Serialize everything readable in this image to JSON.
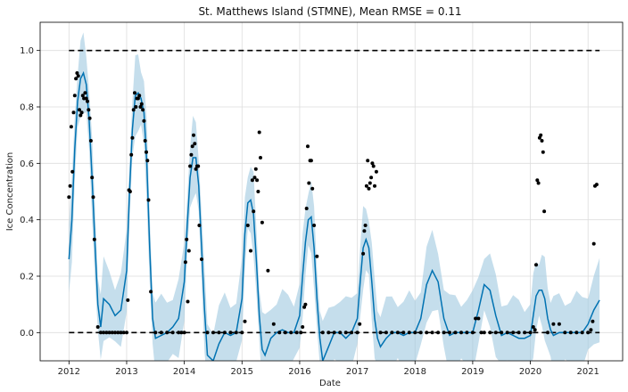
{
  "chart_data": {
    "type": "line",
    "title": "St. Matthews Island (STMNE), Mean RMSE = 0.11",
    "xlabel": "Date",
    "ylabel": "Ice Concentration",
    "xlim": [
      2011.5,
      2021.6
    ],
    "ylim": [
      -0.1,
      1.1
    ],
    "grid": true,
    "x_ticks": [
      2012,
      2013,
      2014,
      2015,
      2016,
      2017,
      2018,
      2019,
      2020,
      2021
    ],
    "y_ticks": [
      0.0,
      0.2,
      0.4,
      0.6,
      0.8,
      1.0
    ],
    "y_tick_labels": [
      "0.0",
      "0.2",
      "0.4",
      "0.6",
      "0.8",
      "1.0"
    ],
    "reference_lines": [
      {
        "y": 1.0,
        "style": "dashed",
        "color": "#000000"
      },
      {
        "y": 0.0,
        "style": "dashed",
        "color": "#000000"
      }
    ],
    "colors": {
      "forecast_line": "#0072b2",
      "uncertainty_band": "#9ec8e0",
      "observed_points": "#000000"
    },
    "forecast": {
      "x": [
        2012.0,
        2012.05,
        2012.1,
        2012.15,
        2012.2,
        2012.25,
        2012.3,
        2012.35,
        2012.4,
        2012.45,
        2012.5,
        2012.55,
        2012.6,
        2012.7,
        2012.8,
        2012.9,
        2013.0,
        2013.05,
        2013.1,
        2013.15,
        2013.2,
        2013.25,
        2013.3,
        2013.35,
        2013.4,
        2013.45,
        2013.5,
        2013.6,
        2013.7,
        2013.8,
        2013.9,
        2014.0,
        2014.05,
        2014.1,
        2014.15,
        2014.2,
        2014.25,
        2014.3,
        2014.35,
        2014.4,
        2014.5,
        2014.6,
        2014.7,
        2014.8,
        2014.9,
        2015.0,
        2015.05,
        2015.1,
        2015.15,
        2015.2,
        2015.25,
        2015.3,
        2015.35,
        2015.4,
        2015.5,
        2015.6,
        2015.7,
        2015.8,
        2015.9,
        2016.0,
        2016.05,
        2016.1,
        2016.15,
        2016.2,
        2016.25,
        2016.3,
        2016.35,
        2016.4,
        2016.5,
        2016.6,
        2016.7,
        2016.8,
        2016.9,
        2017.0,
        2017.05,
        2017.1,
        2017.15,
        2017.2,
        2017.25,
        2017.3,
        2017.35,
        2017.4,
        2017.5,
        2017.6,
        2017.7,
        2017.8,
        2017.9,
        2018.0,
        2018.1,
        2018.2,
        2018.3,
        2018.4,
        2018.5,
        2018.6,
        2018.7,
        2018.8,
        2018.9,
        2019.0,
        2019.1,
        2019.2,
        2019.3,
        2019.4,
        2019.5,
        2019.6,
        2019.7,
        2019.8,
        2019.9,
        2020.0,
        2020.05,
        2020.1,
        2020.15,
        2020.2,
        2020.25,
        2020.3,
        2020.35,
        2020.4,
        2020.5,
        2020.6,
        2020.7,
        2020.8,
        2020.9,
        2021.0,
        2021.1,
        2021.2
      ],
      "y": [
        0.26,
        0.4,
        0.65,
        0.82,
        0.9,
        0.92,
        0.88,
        0.75,
        0.55,
        0.32,
        0.1,
        0.02,
        0.12,
        0.1,
        0.06,
        0.08,
        0.22,
        0.5,
        0.72,
        0.84,
        0.85,
        0.83,
        0.78,
        0.6,
        0.3,
        0.05,
        -0.02,
        -0.01,
        0.0,
        0.02,
        0.05,
        0.18,
        0.38,
        0.55,
        0.62,
        0.62,
        0.52,
        0.3,
        0.08,
        -0.08,
        -0.1,
        -0.04,
        0.0,
        -0.01,
        0.0,
        0.12,
        0.35,
        0.46,
        0.47,
        0.42,
        0.25,
        0.06,
        -0.06,
        -0.08,
        -0.02,
        0.0,
        0.01,
        0.0,
        0.0,
        0.06,
        0.2,
        0.32,
        0.4,
        0.41,
        0.3,
        0.12,
        -0.02,
        -0.1,
        -0.05,
        0.0,
        0.0,
        -0.02,
        0.0,
        0.05,
        0.18,
        0.3,
        0.33,
        0.3,
        0.18,
        0.05,
        -0.02,
        -0.05,
        -0.02,
        0.0,
        0.0,
        -0.01,
        0.0,
        0.0,
        0.05,
        0.17,
        0.22,
        0.18,
        0.05,
        -0.01,
        0.0,
        0.0,
        0.0,
        0.0,
        0.08,
        0.17,
        0.15,
        0.06,
        -0.01,
        0.0,
        -0.01,
        -0.02,
        -0.02,
        -0.01,
        0.06,
        0.13,
        0.15,
        0.15,
        0.12,
        0.05,
        0.01,
        -0.01,
        0.0,
        0.0,
        0.0,
        0.0,
        0.0,
        0.03,
        0.08,
        0.115
      ],
      "band_width": 0.15
    },
    "observed": {
      "x": [
        2012.0,
        2012.02,
        2012.04,
        2012.06,
        2012.08,
        2012.1,
        2012.12,
        2012.14,
        2012.16,
        2012.18,
        2012.2,
        2012.22,
        2012.24,
        2012.26,
        2012.28,
        2012.3,
        2012.32,
        2012.34,
        2012.36,
        2012.38,
        2012.4,
        2012.42,
        2012.44,
        2012.5,
        2012.55,
        2012.6,
        2012.65,
        2012.7,
        2012.75,
        2012.8,
        2012.85,
        2012.9,
        2012.95,
        2013.0,
        2013.02,
        2013.04,
        2013.06,
        2013.08,
        2013.1,
        2013.12,
        2013.14,
        2013.16,
        2013.18,
        2013.2,
        2013.22,
        2013.24,
        2013.26,
        2013.28,
        2013.3,
        2013.32,
        2013.34,
        2013.36,
        2013.38,
        2013.42,
        2013.5,
        2013.6,
        2013.7,
        2013.8,
        2013.9,
        2013.95,
        2014.0,
        2014.02,
        2014.04,
        2014.06,
        2014.08,
        2014.1,
        2014.12,
        2014.14,
        2014.16,
        2014.18,
        2014.2,
        2014.22,
        2014.24,
        2014.26,
        2014.3,
        2014.4,
        2014.5,
        2014.6,
        2014.7,
        2014.8,
        2014.9,
        2015.0,
        2015.05,
        2015.1,
        2015.15,
        2015.18,
        2015.2,
        2015.22,
        2015.24,
        2015.26,
        2015.28,
        2015.3,
        2015.32,
        2015.35,
        2015.45,
        2015.55,
        2015.65,
        2015.75,
        2015.85,
        2015.95,
        2016.02,
        2016.05,
        2016.08,
        2016.1,
        2016.12,
        2016.14,
        2016.16,
        2016.18,
        2016.2,
        2016.22,
        2016.25,
        2016.3,
        2016.4,
        2016.5,
        2016.6,
        2016.7,
        2016.8,
        2016.9,
        2017.0,
        2017.04,
        2017.1,
        2017.12,
        2017.14,
        2017.16,
        2017.18,
        2017.2,
        2017.22,
        2017.24,
        2017.26,
        2017.28,
        2017.3,
        2017.33,
        2017.4,
        2017.5,
        2017.6,
        2017.7,
        2017.8,
        2017.9,
        2018.0,
        2018.1,
        2018.2,
        2018.3,
        2018.4,
        2018.5,
        2018.6,
        2018.7,
        2018.8,
        2018.9,
        2019.0,
        2019.05,
        2019.1,
        2019.15,
        2019.2,
        2019.3,
        2019.4,
        2019.5,
        2019.6,
        2019.7,
        2019.8,
        2019.9,
        2020.0,
        2020.05,
        2020.08,
        2020.1,
        2020.12,
        2020.14,
        2020.16,
        2020.18,
        2020.2,
        2020.22,
        2020.24,
        2020.3,
        2020.4,
        2020.5,
        2020.6,
        2020.7,
        2020.8,
        2020.9,
        2021.0,
        2021.05,
        2021.08,
        2021.1,
        2021.12,
        2021.15
      ],
      "y": [
        0.48,
        0.52,
        0.73,
        0.57,
        0.78,
        0.84,
        0.9,
        0.92,
        0.91,
        0.79,
        0.77,
        0.78,
        0.84,
        0.83,
        0.85,
        0.83,
        0.82,
        0.79,
        0.76,
        0.68,
        0.55,
        0.48,
        0.33,
        0.02,
        0.0,
        0.0,
        0.0,
        0.0,
        0.0,
        0.0,
        0.0,
        0.0,
        0.0,
        0.0,
        0.115,
        0.505,
        0.5,
        0.63,
        0.69,
        0.79,
        0.85,
        0.8,
        0.83,
        0.83,
        0.84,
        0.8,
        0.81,
        0.79,
        0.75,
        0.68,
        0.64,
        0.61,
        0.47,
        0.145,
        0.0,
        0.0,
        0.0,
        0.0,
        0.0,
        0.0,
        0.0,
        0.25,
        0.33,
        0.11,
        0.29,
        0.59,
        0.63,
        0.66,
        0.7,
        0.67,
        0.58,
        0.59,
        0.59,
        0.38,
        0.26,
        0.0,
        0.0,
        0.0,
        0.0,
        0.0,
        0.0,
        0.0,
        0.04,
        0.38,
        0.29,
        0.54,
        0.43,
        0.55,
        0.58,
        0.54,
        0.5,
        0.71,
        0.62,
        0.39,
        0.22,
        0.03,
        0.0,
        0.0,
        0.0,
        0.0,
        0.0,
        0.02,
        0.09,
        0.1,
        0.44,
        0.66,
        0.53,
        0.61,
        0.61,
        0.51,
        0.38,
        0.27,
        0.0,
        0.0,
        0.0,
        0.0,
        0.0,
        0.0,
        0.0,
        0.03,
        0.28,
        0.36,
        0.38,
        0.52,
        0.61,
        0.51,
        0.53,
        0.55,
        0.6,
        0.59,
        0.52,
        0.57,
        0.0,
        0.0,
        0.0,
        0.0,
        0.0,
        0.0,
        0.0,
        0.0,
        0.0,
        0.0,
        0.0,
        0.0,
        0.0,
        0.0,
        0.0,
        0.0,
        0.0,
        0.05,
        0.05,
        0.0,
        0.0,
        0.0,
        0.0,
        0.0,
        0.0,
        0.0,
        0.0,
        0.0,
        0.0,
        0.02,
        0.01,
        0.24,
        0.54,
        0.53,
        0.69,
        0.7,
        0.68,
        0.64,
        0.43,
        0.0,
        0.03,
        0.03,
        0.0,
        0.0,
        0.0,
        0.0,
        0.0,
        0.01,
        0.04,
        0.315,
        0.52,
        0.525
      ]
    }
  }
}
